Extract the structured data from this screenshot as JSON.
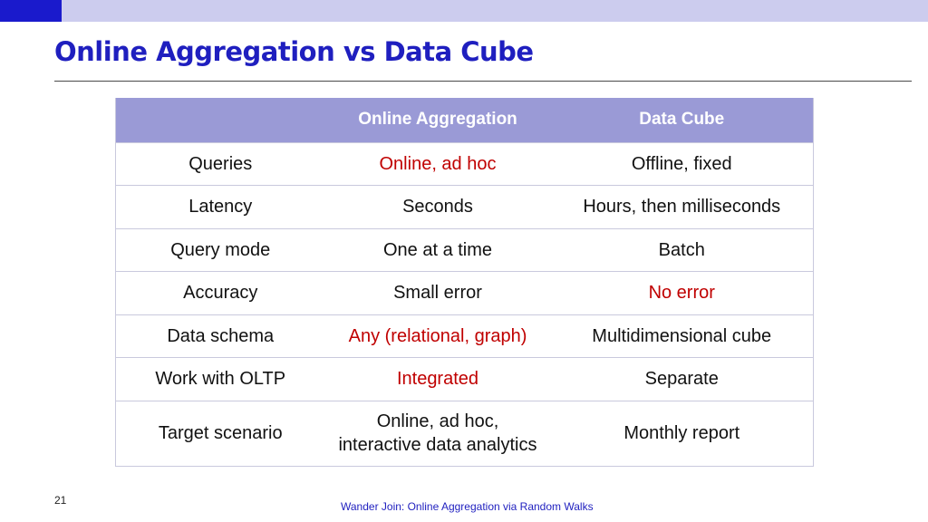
{
  "slide": {
    "title": "Online Aggregation vs Data Cube",
    "number": "21",
    "footer": "Wander Join: Online Aggregation via Random Walks"
  },
  "table": {
    "headers": [
      "",
      "Online Aggregation",
      "Data Cube"
    ],
    "rows": [
      [
        "Queries",
        "Online, ad hoc",
        "Offline, fixed"
      ],
      [
        "Latency",
        "Seconds",
        "Hours, then milliseconds"
      ],
      [
        "Query mode",
        "One at a time",
        "Batch"
      ],
      [
        "Accuracy",
        "Small error",
        "No error"
      ],
      [
        "Data schema",
        "Any (relational, graph)",
        "Multidimensional cube"
      ],
      [
        "Work with OLTP",
        "Integrated",
        "Separate"
      ],
      [
        "Target scenario",
        "Online, ad hoc,",
        "Monthly report"
      ]
    ],
    "target_scenario_line2": "interactive data analytics"
  },
  "colors": {
    "title": "#1f1fbf",
    "header_bg": "#9a9ad6",
    "highlight": "#c00000",
    "top_bar": "#ccccee",
    "top_bar_accent": "#1a1acc"
  }
}
